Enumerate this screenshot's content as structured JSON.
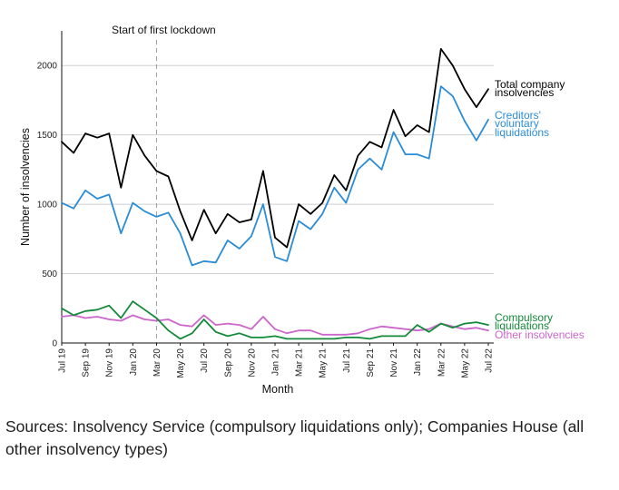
{
  "chart_data": {
    "type": "line",
    "title": "",
    "xlabel": "Month",
    "ylabel": "Number of insolvencies",
    "ylim": [
      0,
      2250
    ],
    "yticks": [
      0,
      500,
      1000,
      1500,
      2000
    ],
    "grid": "horizontal",
    "x": [
      "Jul 19",
      "Aug 19",
      "Sep 19",
      "Oct 19",
      "Nov 19",
      "Dec 19",
      "Jan 20",
      "Feb 20",
      "Mar 20",
      "Apr 20",
      "May 20",
      "Jun 20",
      "Jul 20",
      "Aug 20",
      "Sep 20",
      "Oct 20",
      "Nov 20",
      "Dec 20",
      "Jan 21",
      "Feb 21",
      "Mar 21",
      "Apr 21",
      "May 21",
      "Jun 21",
      "Jul 21",
      "Aug 21",
      "Sep 21",
      "Oct 21",
      "Nov 21",
      "Dec 21",
      "Jan 22",
      "Feb 22",
      "Mar 22",
      "Apr 22",
      "May 22",
      "Jun 22",
      "Jul 22"
    ],
    "xtick_labels": [
      "Jul 19",
      "Sep 19",
      "Nov 19",
      "Jan 20",
      "Mar 20",
      "May 20",
      "Jul 20",
      "Sep 20",
      "Nov 20",
      "Jan 21",
      "Mar 21",
      "May 21",
      "Jul 21",
      "Sep 21",
      "Nov 21",
      "Jan 22",
      "Mar 22",
      "May 22",
      "Jul 22"
    ],
    "series": [
      {
        "name": "Total company insolvencies",
        "color": "#000000",
        "values": [
          1450,
          1370,
          1510,
          1480,
          1510,
          1120,
          1500,
          1350,
          1240,
          1200,
          950,
          740,
          960,
          790,
          930,
          870,
          890,
          1240,
          760,
          690,
          1000,
          930,
          1010,
          1210,
          1100,
          1350,
          1450,
          1410,
          1680,
          1490,
          1570,
          1520,
          2120,
          2000,
          1830,
          1700,
          1830
        ]
      },
      {
        "name": "Creditors' voluntary liquidations",
        "color": "#2b8cd6",
        "values": [
          1010,
          970,
          1100,
          1040,
          1070,
          790,
          1010,
          950,
          910,
          940,
          790,
          560,
          590,
          580,
          740,
          680,
          770,
          1000,
          620,
          590,
          880,
          820,
          930,
          1120,
          1010,
          1250,
          1330,
          1250,
          1520,
          1360,
          1360,
          1330,
          1850,
          1780,
          1600,
          1460,
          1610
        ]
      },
      {
        "name": "Compulsory liquidations",
        "color": "#138a3a",
        "values": [
          250,
          200,
          230,
          240,
          270,
          180,
          300,
          240,
          180,
          90,
          30,
          70,
          170,
          80,
          50,
          70,
          40,
          40,
          50,
          30,
          30,
          30,
          30,
          30,
          40,
          40,
          30,
          50,
          50,
          50,
          130,
          80,
          140,
          110,
          140,
          150,
          130
        ]
      },
      {
        "name": "Other insolvencies",
        "color": "#cc66cc",
        "values": [
          190,
          200,
          180,
          190,
          170,
          160,
          200,
          170,
          160,
          170,
          130,
          120,
          200,
          130,
          140,
          130,
          100,
          190,
          100,
          70,
          90,
          90,
          60,
          60,
          60,
          70,
          100,
          120,
          110,
          100,
          90,
          100,
          140,
          120,
          100,
          110,
          90
        ]
      }
    ],
    "annotations": [
      {
        "text": "Start of first lockdown",
        "x": "Mar 20",
        "style": "dashed vertical line"
      }
    ],
    "legend": "direct labels at right end of lines"
  },
  "labels": {
    "total_1": "Total company",
    "total_2": "insolvencies",
    "cvl_1": "Creditors'",
    "cvl_2": "voluntary",
    "cvl_3": "liquidations",
    "comp_1": "Compulsory",
    "comp_2": "liquidations",
    "other_1": "Other insolvencies"
  },
  "source_note": "Sources: Insolvency Service (compulsory liquidations only); Companies House (all other insolvency types)"
}
